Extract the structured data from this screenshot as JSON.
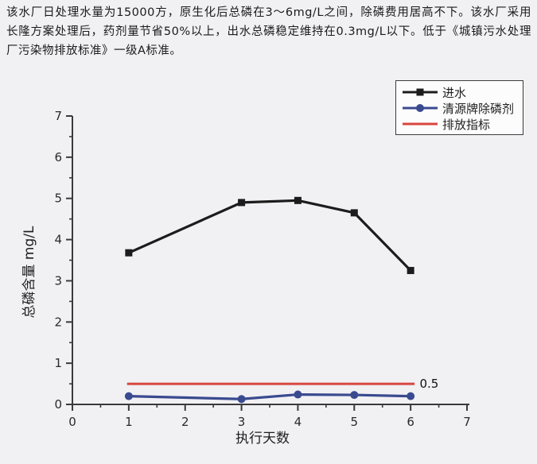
{
  "intro": {
    "text": "该水厂日处理水量为15000方，原生化后总磷在3～6mg/L之间，除磷费用居高不下。该水厂采用长隆方案处理后，药剂量节省50%以上，出水总磷稳定维持在0.3mg/L以下。低于《城镇污水处理厂污染物排放标准》一级A标准。"
  },
  "legend": {
    "items": [
      {
        "label": "进水"
      },
      {
        "label": "清源牌除磷剂"
      },
      {
        "label": "排放指标"
      }
    ]
  },
  "chart_data": {
    "type": "line",
    "title": "",
    "xlabel": "执行天数",
    "ylabel": "总磷含量 mg/L",
    "xlim": [
      0,
      7
    ],
    "ylim": [
      0,
      7
    ],
    "x_ticks": [
      0,
      1,
      2,
      3,
      4,
      5,
      6,
      7
    ],
    "y_ticks": [
      0,
      1,
      2,
      3,
      4,
      5,
      6,
      7
    ],
    "grid": false,
    "legend_position": "top-right",
    "x": [
      1,
      3,
      4,
      5,
      6
    ],
    "series": [
      {
        "name": "进水",
        "color": "#1c1c1c",
        "marker": "square",
        "values": [
          3.68,
          4.9,
          4.95,
          4.65,
          3.25
        ]
      },
      {
        "name": "清源牌除磷剂",
        "color": "#3a4a90",
        "marker": "circle",
        "values": [
          0.2,
          0.13,
          0.24,
          0.23,
          0.2
        ]
      },
      {
        "name": "排放指标",
        "color": "#d8463f",
        "marker": "none",
        "style": "hline",
        "value": 0.5,
        "x_start": 0.97,
        "x_end": 6.07
      }
    ],
    "annotations": [
      {
        "text": "0.5",
        "x": 6.16,
        "y": 0.5
      }
    ]
  },
  "colors": {
    "background": "#f1f0f3",
    "axis": "#3a3a3a",
    "series_influent": "#1c1c1c",
    "series_agent": "#3a4a90",
    "series_limit": "#d8463f"
  }
}
